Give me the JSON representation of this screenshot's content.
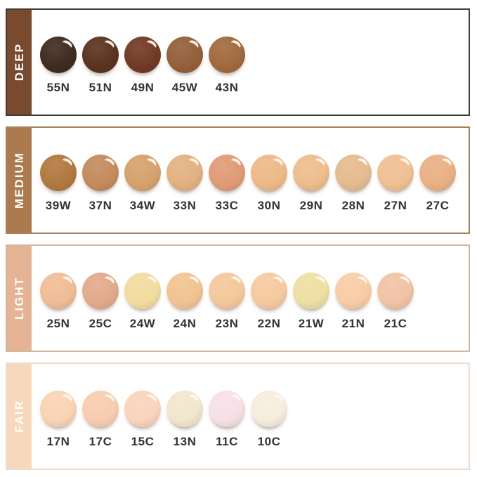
{
  "chart_data": {
    "type": "table",
    "description": "Foundation shade swatch chart grouped by depth category",
    "swatch_code_text_color": "#333333",
    "sidebar_text_color": "#ffffff",
    "rows": [
      {
        "label": "DEEP",
        "sidebar_color": "#7a4a2f",
        "border_color": "#413c37",
        "swatches": [
          {
            "code": "55N",
            "color": "#3f2c20"
          },
          {
            "code": "51N",
            "color": "#5a341f"
          },
          {
            "code": "49N",
            "color": "#723a26"
          },
          {
            "code": "45W",
            "color": "#93603a"
          },
          {
            "code": "43N",
            "color": "#a26a3e"
          }
        ]
      },
      {
        "label": "MEDIUM",
        "sidebar_color": "#ad7a4f",
        "border_color": "#a8805a",
        "swatches": [
          {
            "code": "39W",
            "color": "#b17940"
          },
          {
            "code": "37N",
            "color": "#c38b5e"
          },
          {
            "code": "34W",
            "color": "#d5a26c"
          },
          {
            "code": "33N",
            "color": "#e3b181"
          },
          {
            "code": "33C",
            "color": "#e09b76"
          },
          {
            "code": "30N",
            "color": "#edb988"
          },
          {
            "code": "29N",
            "color": "#eebd8d"
          },
          {
            "code": "28N",
            "color": "#e5bb90"
          },
          {
            "code": "27N",
            "color": "#efc092"
          },
          {
            "code": "27C",
            "color": "#eab084"
          }
        ]
      },
      {
        "label": "LIGHT",
        "sidebar_color": "#e6b495",
        "border_color": "#cfb89f",
        "swatches": [
          {
            "code": "25N",
            "color": "#efbd96"
          },
          {
            "code": "25C",
            "color": "#e2aa8c"
          },
          {
            "code": "24W",
            "color": "#f2dc9e"
          },
          {
            "code": "24N",
            "color": "#f1c491"
          },
          {
            "code": "23N",
            "color": "#f4c89b"
          },
          {
            "code": "22N",
            "color": "#f6caa0"
          },
          {
            "code": "21W",
            "color": "#eedfa2"
          },
          {
            "code": "21N",
            "color": "#f8cda6"
          },
          {
            "code": "21C",
            "color": "#f2c3a6"
          }
        ]
      },
      {
        "label": "FAIR",
        "sidebar_color": "#f7d8bc",
        "border_color": "#eedccb",
        "swatches": [
          {
            "code": "17N",
            "color": "#f9d4b4"
          },
          {
            "code": "17C",
            "color": "#f7cdb0"
          },
          {
            "code": "15C",
            "color": "#fad4bb"
          },
          {
            "code": "13N",
            "color": "#f2e7cd"
          },
          {
            "code": "11C",
            "color": "#f6e0e6"
          },
          {
            "code": "10C",
            "color": "#f6eddd"
          }
        ]
      }
    ]
  }
}
